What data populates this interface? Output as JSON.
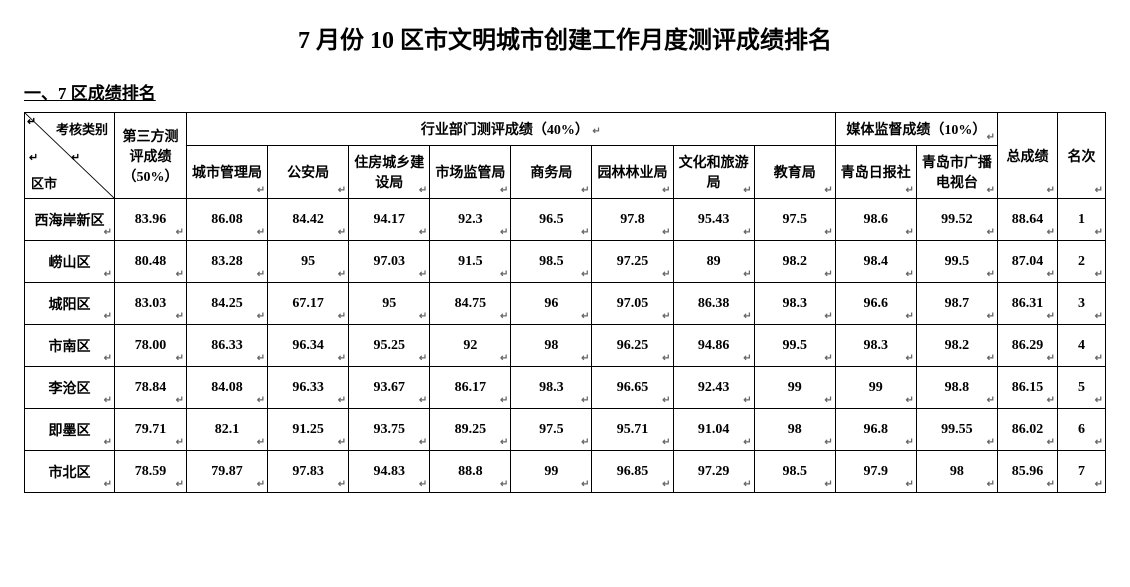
{
  "title": "7 月份 10 区市文明城市创建工作月度测评成绩排名",
  "subtitle": "一、7 区成绩排名",
  "header": {
    "diag_top": "考核类别",
    "diag_bottom": "区市",
    "third_party": "第三方测评成绩（50%）",
    "dept_group": "行业部门测评成绩（40%）",
    "media_group": "媒体监督成绩（10%）",
    "total": "总成绩",
    "rank": "名次",
    "depts": [
      "城市管理局",
      "公安局",
      "住房城乡建设局",
      "市场监管局",
      "商务局",
      "园林林业局",
      "文化和旅游局",
      "教育局"
    ],
    "media": [
      "青岛日报社",
      "青岛市广播电视台"
    ]
  },
  "rows": [
    {
      "district": "西海岸新区",
      "third": "83.96",
      "d": [
        "86.08",
        "84.42",
        "94.17",
        "92.3",
        "96.5",
        "97.8",
        "95.43",
        "97.5"
      ],
      "m": [
        "98.6",
        "99.52"
      ],
      "total": "88.64",
      "rank": "1"
    },
    {
      "district": "崂山区",
      "third": "80.48",
      "d": [
        "83.28",
        "95",
        "97.03",
        "91.5",
        "98.5",
        "97.25",
        "89",
        "98.2"
      ],
      "m": [
        "98.4",
        "99.5"
      ],
      "total": "87.04",
      "rank": "2"
    },
    {
      "district": "城阳区",
      "third": "83.03",
      "d": [
        "84.25",
        "67.17",
        "95",
        "84.75",
        "96",
        "97.05",
        "86.38",
        "98.3"
      ],
      "m": [
        "96.6",
        "98.7"
      ],
      "total": "86.31",
      "rank": "3"
    },
    {
      "district": "市南区",
      "third": "78.00",
      "d": [
        "86.33",
        "96.34",
        "95.25",
        "92",
        "98",
        "96.25",
        "94.86",
        "99.5"
      ],
      "m": [
        "98.3",
        "98.2"
      ],
      "total": "86.29",
      "rank": "4"
    },
    {
      "district": "李沧区",
      "third": "78.84",
      "d": [
        "84.08",
        "96.33",
        "93.67",
        "86.17",
        "98.3",
        "96.65",
        "92.43",
        "99"
      ],
      "m": [
        "99",
        "98.8"
      ],
      "total": "86.15",
      "rank": "5"
    },
    {
      "district": "即墨区",
      "third": "79.71",
      "d": [
        "82.1",
        "91.25",
        "93.75",
        "89.25",
        "97.5",
        "95.71",
        "91.04",
        "98"
      ],
      "m": [
        "96.8",
        "99.55"
      ],
      "total": "86.02",
      "rank": "6"
    },
    {
      "district": "市北区",
      "third": "78.59",
      "d": [
        "79.87",
        "97.83",
        "94.83",
        "88.8",
        "99",
        "96.85",
        "97.29",
        "98.5"
      ],
      "m": [
        "97.9",
        "98"
      ],
      "total": "85.96",
      "rank": "7"
    }
  ]
}
